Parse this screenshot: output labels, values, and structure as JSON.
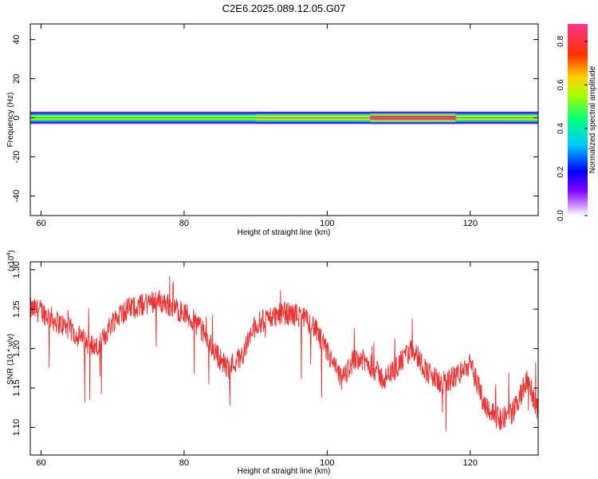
{
  "title": "C2E6.2025.089.12.05.G07",
  "chart_data": [
    {
      "type": "heatmap",
      "xlabel": "Height of straight line (km)",
      "ylabel": "Frequency (Hz)",
      "xlim": [
        58.5,
        129.5
      ],
      "ylim": [
        -50,
        48
      ],
      "xticks": [
        60,
        80,
        100,
        120
      ],
      "yticks": [
        -40,
        -20,
        0,
        20,
        40
      ],
      "xtick_labels": [
        "60",
        "80",
        "100",
        "120"
      ],
      "ytick_labels": [
        "-40",
        "-20",
        "0",
        "20",
        "40"
      ],
      "colorbar": {
        "label": "Normalized spectral amplitude",
        "range": [
          0.0,
          0.88
        ],
        "ticks": [
          0.0,
          0.2,
          0.4,
          0.6,
          0.8
        ],
        "tick_labels": [
          "0.0",
          "0.2",
          "0.4",
          "0.6",
          "0.8"
        ],
        "colormap": "rainbow (white-violet-blue-cyan-green-yellow-red-magenta)"
      },
      "band": {
        "center_hz": 0,
        "half_width_hz": 3,
        "segments": [
          {
            "x": [
              58.5,
              90
            ],
            "peak_amplitude": 0.55
          },
          {
            "x": [
              90,
              106
            ],
            "peak_amplitude": 0.62
          },
          {
            "x": [
              106,
              118
            ],
            "peak_amplitude": 0.85
          },
          {
            "x": [
              118,
              129.5
            ],
            "peak_amplitude": 0.6
          }
        ]
      }
    },
    {
      "type": "line",
      "xlabel": "Height of straight line (km)",
      "ylabel": "SNR (10 * v/v)",
      "y_multiplier": "(x10",
      "y_multiplier_exp": "4",
      "y_multiplier_close": ")",
      "xlim": [
        58.5,
        129.5
      ],
      "ylim": [
        1.065,
        1.31
      ],
      "xticks": [
        60,
        80,
        100,
        120
      ],
      "yticks": [
        1.1,
        1.15,
        1.2,
        1.25,
        1.3
      ],
      "xtick_labels": [
        "60",
        "80",
        "100",
        "120"
      ],
      "ytick_labels": [
        "1.10",
        "1.15",
        "1.20",
        "1.25",
        "1.30"
      ],
      "color": "#ee3333",
      "trend": {
        "x": [
          58.5,
          60,
          62,
          64,
          66,
          68,
          70,
          72,
          74,
          76,
          78,
          80,
          82,
          84,
          86,
          88,
          90,
          92,
          94,
          96,
          98,
          100,
          102,
          104,
          106,
          108,
          110,
          112,
          114,
          116,
          118,
          120,
          122,
          124,
          126,
          128,
          129.5
        ],
        "y": [
          1.25,
          1.248,
          1.235,
          1.225,
          1.21,
          1.2,
          1.235,
          1.25,
          1.255,
          1.262,
          1.255,
          1.245,
          1.23,
          1.2,
          1.175,
          1.19,
          1.23,
          1.24,
          1.245,
          1.242,
          1.23,
          1.195,
          1.16,
          1.19,
          1.18,
          1.16,
          1.18,
          1.2,
          1.17,
          1.155,
          1.165,
          1.18,
          1.13,
          1.11,
          1.12,
          1.16,
          1.12
        ]
      }
    }
  ]
}
